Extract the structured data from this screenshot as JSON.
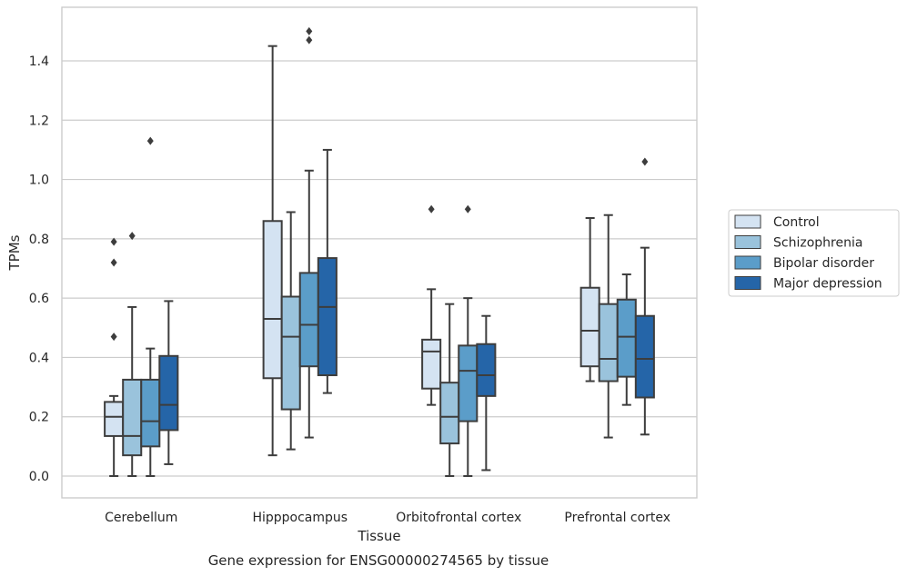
{
  "chart_data": {
    "type": "box",
    "xlabel": "Tissue",
    "ylabel": "TPMs",
    "caption": "Gene expression for ENSG00000274565 by tissue",
    "ylim": [
      -0.07,
      1.58
    ],
    "yticks": [
      0.0,
      0.2,
      0.4,
      0.6,
      0.8,
      1.0,
      1.2,
      1.4
    ],
    "ytick_labels": [
      "0.0",
      "0.2",
      "0.4",
      "0.6",
      "0.8",
      "1.0",
      "1.2",
      "1.4"
    ],
    "grid": "horizontal",
    "legend_position": "right",
    "categories": [
      "Cerebellum",
      "Hipppocampus",
      "Orbitofrontal cortex",
      "Prefrontal cortex"
    ],
    "series": [
      {
        "name": "Control",
        "color": "#d4e3f2",
        "boxes": [
          {
            "whislo": 0.0,
            "q1": 0.135,
            "med": 0.2,
            "q3": 0.25,
            "whishi": 0.27,
            "fliers": [
              0.47,
              0.72,
              0.79
            ]
          },
          {
            "whislo": 0.07,
            "q1": 0.33,
            "med": 0.53,
            "q3": 0.86,
            "whishi": 1.45,
            "fliers": []
          },
          {
            "whislo": 0.24,
            "q1": 0.295,
            "med": 0.42,
            "q3": 0.46,
            "whishi": 0.63,
            "fliers": [
              0.9
            ]
          },
          {
            "whislo": 0.32,
            "q1": 0.37,
            "med": 0.49,
            "q3": 0.635,
            "whishi": 0.87,
            "fliers": []
          }
        ]
      },
      {
        "name": "Schizophrenia",
        "color": "#9ac3dc",
        "boxes": [
          {
            "whislo": 0.0,
            "q1": 0.07,
            "med": 0.135,
            "q3": 0.325,
            "whishi": 0.57,
            "fliers": [
              0.81
            ]
          },
          {
            "whislo": 0.09,
            "q1": 0.225,
            "med": 0.47,
            "q3": 0.605,
            "whishi": 0.89,
            "fliers": []
          },
          {
            "whislo": 0.0,
            "q1": 0.11,
            "med": 0.2,
            "q3": 0.315,
            "whishi": 0.58,
            "fliers": []
          },
          {
            "whislo": 0.13,
            "q1": 0.32,
            "med": 0.395,
            "q3": 0.58,
            "whishi": 0.88,
            "fliers": []
          }
        ]
      },
      {
        "name": "Bipolar disorder",
        "color": "#5b9dc9",
        "boxes": [
          {
            "whislo": 0.0,
            "q1": 0.1,
            "med": 0.185,
            "q3": 0.325,
            "whishi": 0.43,
            "fliers": [
              1.13
            ]
          },
          {
            "whislo": 0.13,
            "q1": 0.37,
            "med": 0.51,
            "q3": 0.685,
            "whishi": 1.03,
            "fliers": [
              1.47,
              1.5
            ]
          },
          {
            "whislo": 0.0,
            "q1": 0.185,
            "med": 0.355,
            "q3": 0.44,
            "whishi": 0.6,
            "fliers": [
              0.9
            ]
          },
          {
            "whislo": 0.24,
            "q1": 0.335,
            "med": 0.47,
            "q3": 0.595,
            "whishi": 0.68,
            "fliers": []
          }
        ]
      },
      {
        "name": "Major depression",
        "color": "#2565a8",
        "boxes": [
          {
            "whislo": 0.04,
            "q1": 0.155,
            "med": 0.24,
            "q3": 0.405,
            "whishi": 0.59,
            "fliers": []
          },
          {
            "whislo": 0.28,
            "q1": 0.34,
            "med": 0.57,
            "q3": 0.735,
            "whishi": 1.1,
            "fliers": []
          },
          {
            "whislo": 0.02,
            "q1": 0.27,
            "med": 0.34,
            "q3": 0.445,
            "whishi": 0.54,
            "fliers": []
          },
          {
            "whislo": 0.14,
            "q1": 0.265,
            "med": 0.395,
            "q3": 0.54,
            "whishi": 0.77,
            "fliers": [
              1.06
            ]
          }
        ]
      }
    ]
  }
}
